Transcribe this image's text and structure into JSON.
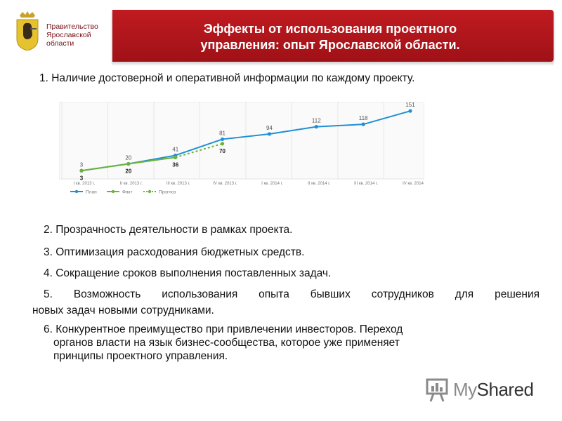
{
  "header": {
    "org_line1": "Правительство",
    "org_line2": "Ярославской",
    "org_line3": "области",
    "title_line1": "Эффекты от использования проектного",
    "title_line2": "управления: опыт Ярославской области."
  },
  "items": [
    "1. Наличие достоверной и оперативной информации по каждому проекту.",
    "2. Прозрачность деятельности в рамках проекта.",
    "3. Оптимизация расходования бюджетных средств.",
    "4. Сокращение сроков выполнения поставленных задач.",
    "5. Возможность использования опыта бывших сотрудников для решения",
    "новых задач новыми сотрудниками.",
    "6. Конкурентное преимущество при привлечении инвесторов. Переход",
    "органов власти на язык бизнес-сообщества, которое уже применяет",
    "принципы проектного управления."
  ],
  "chart_data": {
    "type": "line",
    "categories": [
      "I кв. 2013 г.",
      "II кв. 2013 г.",
      "III кв. 2013 г.",
      "IV кв. 2013 г.",
      "I кв. 2014 г.",
      "II кв. 2014 г.",
      "III кв. 2014 г.",
      "IV кв. 2014"
    ],
    "series": [
      {
        "name": "План",
        "values": [
          3,
          20,
          41,
          81,
          94,
          112,
          118,
          151
        ],
        "color": "#1f8fd6"
      },
      {
        "name": "Факт",
        "values": [
          3,
          20,
          36,
          null,
          null,
          null,
          null,
          null
        ],
        "color": "#6bb33a"
      },
      {
        "name": "Прогноз",
        "values": [
          null,
          null,
          36,
          70,
          null,
          null,
          null,
          null
        ],
        "color": "#6bb33a",
        "dashed": true
      }
    ],
    "ylim": [
      0,
      160
    ],
    "grid": true,
    "legend": "bottom-left"
  },
  "watermark": {
    "part1": "My",
    "part2": "Shared"
  },
  "colors": {
    "banner": "#b3161c",
    "plan": "#1f8fd6",
    "fact": "#6bb33a"
  }
}
